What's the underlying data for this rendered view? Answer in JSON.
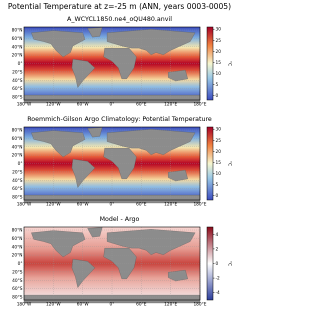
{
  "figure": {
    "title": "Potential Temperature at z=-25 m (ANN, years 0003-0005)",
    "lat_labels": [
      "80°N",
      "60°N",
      "40°N",
      "20°N",
      "0°",
      "20°S",
      "40°S",
      "60°S",
      "80°S"
    ],
    "lon_labels": [
      "180°W",
      "120°W",
      "60°W",
      "0°",
      "60°E",
      "120°E",
      "180°E"
    ],
    "panels": [
      {
        "title": "A_WCYCL1850.ne4_oQU480.anvil",
        "colorbar": {
          "range": [
            -2,
            31
          ],
          "ticks": [
            0,
            5,
            10,
            15,
            20,
            25,
            30
          ],
          "label": "°C",
          "colormap": "temperature"
        }
      },
      {
        "title": "Roemmich-Gilson Argo Climatology: Potential Temperature",
        "colorbar": {
          "range": [
            -2,
            31
          ],
          "ticks": [
            0,
            5,
            10,
            15,
            20,
            25,
            30
          ],
          "label": "°C",
          "colormap": "temperature"
        }
      },
      {
        "title": "Model - Argo",
        "colorbar": {
          "range": [
            -5,
            5
          ],
          "ticks": [
            -4,
            -2,
            0,
            2,
            4
          ],
          "label": "°C",
          "colormap": "difference"
        }
      }
    ]
  }
}
